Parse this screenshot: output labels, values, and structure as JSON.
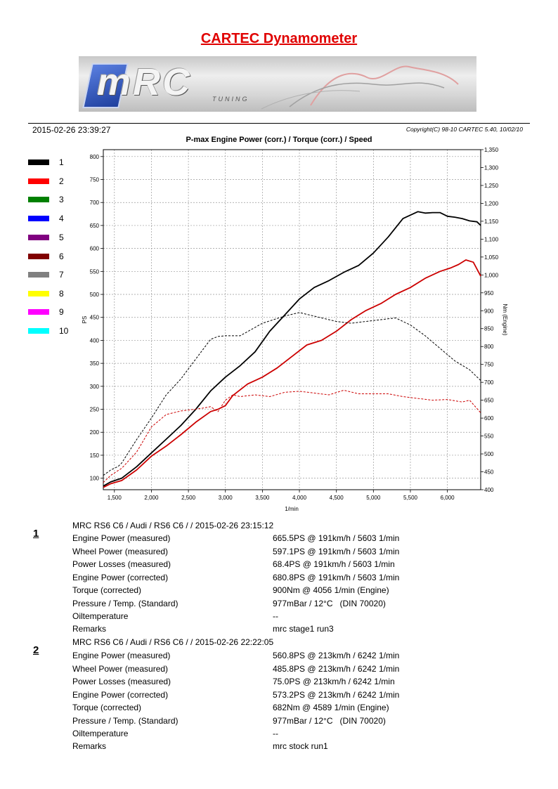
{
  "page_title": "CARTEC Dynamometer",
  "banner": {
    "logo_text": "mRC",
    "logo_sub": "TUNING"
  },
  "datetime": "2015-02-26 23:39:27",
  "copyright": "Copyright(C) 98-10 CARTEC 5.40, 10/02/10",
  "legend": [
    {
      "label": "1",
      "color": "#000000"
    },
    {
      "label": "2",
      "color": "#ff0000"
    },
    {
      "label": "3",
      "color": "#008000"
    },
    {
      "label": "4",
      "color": "#0000ff"
    },
    {
      "label": "5",
      "color": "#800080"
    },
    {
      "label": "6",
      "color": "#800000"
    },
    {
      "label": "7",
      "color": "#808080"
    },
    {
      "label": "8",
      "color": "#ffff00"
    },
    {
      "label": "9",
      "color": "#ff00ff"
    },
    {
      "label": "10",
      "color": "#00ffff"
    }
  ],
  "chart_data": {
    "type": "line",
    "title": "P-max Engine Power (corr.) / Torque (corr.) / Speed",
    "xlabel": "1/min",
    "ylabel_left": "PS",
    "ylabel_right": "Nm (Engine)",
    "xlim": [
      1350,
      6450
    ],
    "ylim_left": [
      75,
      815
    ],
    "ylim_right": [
      400,
      1350
    ],
    "xticks": [
      1500,
      2000,
      2500,
      3000,
      3500,
      4000,
      4500,
      5000,
      5500,
      6000
    ],
    "xtick_labels": [
      "1,500",
      "2,000",
      "2,500",
      "3,000",
      "3,500",
      "4,000",
      "4,500",
      "5,000",
      "5,500",
      "6,000"
    ],
    "yticks_left": [
      100,
      150,
      200,
      250,
      300,
      350,
      400,
      450,
      500,
      550,
      600,
      650,
      700,
      750,
      800
    ],
    "yticks_right": [
      400,
      450,
      500,
      550,
      600,
      650,
      700,
      750,
      800,
      850,
      900,
      950,
      1000,
      1050,
      1100,
      1150,
      1200,
      1250,
      1300,
      1350
    ],
    "ytick_right_labels": [
      "400",
      "450",
      "500",
      "550",
      "600",
      "650",
      "700",
      "750",
      "800",
      "850",
      "900",
      "950",
      "1,000",
      "1,050",
      "1,100",
      "1,150",
      "1,200",
      "1,250",
      "1,300",
      "1,350"
    ],
    "grid": true,
    "series": [
      {
        "axis": "left",
        "style": "solid",
        "color": "#000000",
        "x": [
          1350,
          1450,
          1600,
          1800,
          2000,
          2200,
          2400,
          2600,
          2800,
          3000,
          3200,
          3400,
          3600,
          3800,
          4000,
          4200,
          4400,
          4600,
          4800,
          5000,
          5200,
          5300,
          5400,
          5600,
          5700,
          5800,
          5900,
          6000,
          6100,
          6200,
          6300,
          6400,
          6450
        ],
        "y": [
          83,
          92,
          100,
          125,
          155,
          185,
          215,
          250,
          290,
          320,
          345,
          375,
          420,
          455,
          490,
          515,
          530,
          548,
          563,
          590,
          625,
          645,
          665,
          680,
          677,
          678,
          678,
          670,
          668,
          665,
          660,
          658,
          650
        ]
      },
      {
        "axis": "left",
        "style": "solid",
        "color": "#cc0000",
        "x": [
          1350,
          1450,
          1600,
          1800,
          2000,
          2200,
          2400,
          2600,
          2800,
          2900,
          3000,
          3100,
          3300,
          3500,
          3700,
          3900,
          4100,
          4300,
          4500,
          4700,
          4900,
          5100,
          5300,
          5500,
          5700,
          5900,
          6050,
          6150,
          6250,
          6350,
          6450
        ],
        "y": [
          80,
          88,
          95,
          118,
          148,
          170,
          195,
          222,
          245,
          250,
          258,
          280,
          305,
          320,
          340,
          365,
          390,
          400,
          420,
          445,
          465,
          480,
          500,
          515,
          535,
          550,
          558,
          565,
          575,
          570,
          540
        ]
      },
      {
        "axis": "right",
        "style": "dashed",
        "color": "#000000",
        "x": [
          1350,
          1450,
          1550,
          1600,
          1800,
          2000,
          2200,
          2400,
          2600,
          2800,
          2900,
          3000,
          3200,
          3500,
          3800,
          4000,
          4100,
          4300,
          4500,
          4700,
          4900,
          5100,
          5300,
          5500,
          5700,
          5900,
          6100,
          6300,
          6450
        ],
        "y": [
          440,
          455,
          465,
          475,
          540,
          600,
          665,
          710,
          765,
          820,
          828,
          830,
          830,
          865,
          885,
          895,
          890,
          880,
          870,
          865,
          870,
          875,
          880,
          860,
          830,
          795,
          760,
          735,
          705
        ]
      },
      {
        "axis": "right",
        "style": "dashed",
        "color": "#cc0000",
        "x": [
          1350,
          1450,
          1600,
          1800,
          2000,
          2200,
          2400,
          2600,
          2700,
          2800,
          2900,
          3000,
          3100,
          3200,
          3400,
          3600,
          3800,
          4000,
          4200,
          4400,
          4600,
          4800,
          5000,
          5200,
          5400,
          5600,
          5800,
          6000,
          6200,
          6300,
          6450
        ],
        "y": [
          420,
          440,
          460,
          505,
          575,
          610,
          620,
          625,
          628,
          632,
          618,
          650,
          665,
          660,
          665,
          660,
          672,
          675,
          670,
          665,
          678,
          668,
          668,
          668,
          660,
          655,
          650,
          652,
          645,
          650,
          615
        ]
      }
    ]
  },
  "runs": [
    {
      "number": "1",
      "header": "MRC RS6 C6 / Audi / RS6 C6 /  / 2015-02-26 23:15:12",
      "rows": [
        {
          "label": "Engine Power (measured)",
          "value": "665.5PS @ 191km/h / 5603 1/min"
        },
        {
          "label": "Wheel Power (measured)",
          "value": "597.1PS @ 191km/h / 5603 1/min"
        },
        {
          "label": "Power Losses (measured)",
          "value": "68.4PS @ 191km/h / 5603 1/min"
        },
        {
          "label": "Engine Power (corrected)",
          "value": "680.8PS @ 191km/h / 5603 1/min"
        },
        {
          "label": "Torque (corrected)",
          "value": "900Nm @ 4056 1/min (Engine)"
        },
        {
          "label": "Pressure / Temp. (Standard)",
          "value": "977mBar / 12°C   (DIN 70020)"
        },
        {
          "label": "Oiltemperature",
          "value": "--"
        },
        {
          "label": "Remarks",
          "value": "mrc stage1 run3"
        }
      ]
    },
    {
      "number": "2",
      "header": "MRC RS6 C6 / Audi / RS6 C6 /  / 2015-02-26 22:22:05",
      "rows": [
        {
          "label": "Engine Power (measured)",
          "value": "560.8PS @ 213km/h / 6242 1/min"
        },
        {
          "label": "Wheel Power (measured)",
          "value": "485.8PS @ 213km/h / 6242 1/min"
        },
        {
          "label": "Power Losses (measured)",
          "value": "75.0PS @ 213km/h / 6242 1/min"
        },
        {
          "label": "Engine Power (corrected)",
          "value": "573.2PS @ 213km/h / 6242 1/min"
        },
        {
          "label": "Torque (corrected)",
          "value": "682Nm @ 4589 1/min (Engine)"
        },
        {
          "label": "Pressure / Temp. (Standard)",
          "value": "977mBar / 12°C   (DIN 70020)"
        },
        {
          "label": "Oiltemperature",
          "value": "--"
        },
        {
          "label": "Remarks",
          "value": "mrc stock run1"
        }
      ]
    }
  ]
}
